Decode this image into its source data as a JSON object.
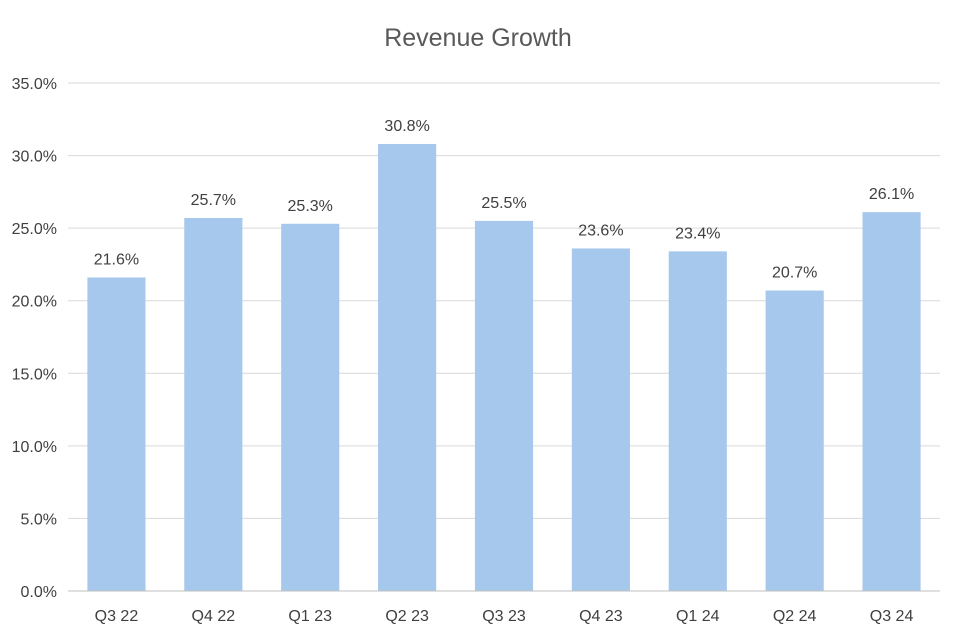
{
  "chart_data": {
    "type": "bar",
    "title": "Revenue Growth",
    "categories": [
      "Q3 22",
      "Q4 22",
      "Q1 23",
      "Q2 23",
      "Q3 23",
      "Q4 23",
      "Q1 24",
      "Q2 24",
      "Q3 24"
    ],
    "values": [
      21.6,
      25.7,
      25.3,
      30.8,
      25.5,
      23.6,
      23.4,
      20.7,
      26.1
    ],
    "data_labels": [
      "21.6%",
      "25.7%",
      "25.3%",
      "30.8%",
      "25.5%",
      "23.6%",
      "23.4%",
      "20.7%",
      "26.1%"
    ],
    "y_ticks": [
      "0.0%",
      "5.0%",
      "10.0%",
      "15.0%",
      "20.0%",
      "25.0%",
      "30.0%",
      "35.0%"
    ],
    "ylim": [
      0,
      35
    ],
    "grid": true,
    "legend": "none",
    "bar_color": "#a6c8ec"
  }
}
